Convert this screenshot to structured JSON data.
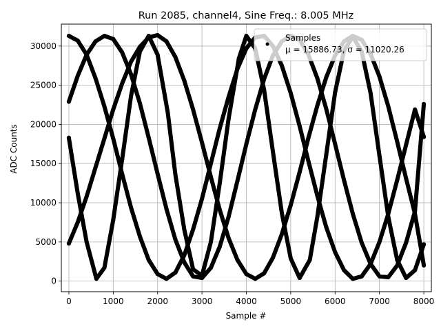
{
  "chart_data": {
    "type": "scatter",
    "title": "Run 2085, channel4, Sine Freq.: 8.005 MHz",
    "xlabel": "Sample #",
    "ylabel": "ADC Counts",
    "xlim": [
      -170,
      8170
    ],
    "ylim": [
      -1350,
      32800
    ],
    "xticks": [
      0,
      1000,
      2000,
      3000,
      4000,
      5000,
      6000,
      7000,
      8000
    ],
    "yticks": [
      0,
      5000,
      10000,
      15000,
      20000,
      25000,
      30000
    ],
    "grid": true,
    "legend": {
      "placement": "top-right",
      "label": "Samples",
      "stats": "μ = 15886.73, σ = 11020.26"
    },
    "marker_color": "#000000",
    "series": [
      {
        "x": [
          0,
          200,
          400,
          620,
          800,
          1000,
          1200,
          1400,
          1600,
          1800,
          2000,
          2230,
          2400,
          2600,
          2800,
          3000,
          3200,
          3400,
          3600,
          3830,
          4000,
          4200,
          4400,
          4600,
          4800,
          5000,
          5200,
          5430,
          5600,
          5800,
          6000,
          6200,
          6400,
          6600,
          6800,
          7000,
          7200,
          7400,
          7600,
          7800,
          8000
        ],
        "y": [
          18300,
          11200,
          5000,
          300,
          1700,
          7800,
          15500,
          23600,
          29300,
          31300,
          28900,
          21500,
          13600,
          6600,
          1500,
          700,
          5000,
          12500,
          20700,
          28400,
          31300,
          29700,
          24400,
          16500,
          8700,
          2900,
          400,
          2700,
          8200,
          16100,
          24100,
          29400,
          31200,
          29300,
          24000,
          16000,
          8200,
          2700,
          400,
          1400,
          4700
        ]
      },
      {
        "x": [
          0,
          200,
          400,
          600,
          800,
          1000,
          1200,
          1400,
          1600,
          1800,
          2000,
          2200,
          2400,
          2600,
          2800,
          3000,
          3200,
          3400,
          3600,
          3800,
          4000,
          4200,
          4400,
          4600,
          4800,
          5000,
          5200,
          5400,
          5600,
          5800,
          6000,
          6200,
          6400,
          6600,
          6800,
          7000,
          7200,
          7400,
          7600,
          7800,
          8000
        ],
        "y": [
          31300,
          30700,
          28900,
          25900,
          22300,
          18200,
          13700,
          9400,
          5700,
          2700,
          900,
          300,
          1100,
          3300,
          6600,
          10500,
          15000,
          19500,
          23500,
          27100,
          29700,
          31100,
          31300,
          30000,
          27500,
          24000,
          19800,
          15300,
          10900,
          6900,
          3700,
          1400,
          300,
          600,
          2200,
          5000,
          8600,
          12900,
          17400,
          21900,
          18400
        ]
      },
      {
        "x": [
          0,
          200,
          400,
          600,
          800,
          1000,
          1200,
          1400,
          1600,
          1800,
          2000,
          2200,
          2400,
          2600,
          2800,
          3000,
          3200,
          3400,
          3600,
          3800,
          4000,
          4200,
          4400,
          4600,
          4800,
          5000,
          5200,
          5400,
          5600,
          5800,
          6000,
          6200,
          6400,
          6600,
          6800,
          7000,
          7200,
          7400,
          7600,
          7800,
          8000
        ],
        "y": [
          22900,
          26200,
          28900,
          30600,
          31300,
          30900,
          29200,
          26400,
          22700,
          18300,
          13700,
          9200,
          5300,
          2400,
          600,
          400,
          1700,
          4400,
          8200,
          12800,
          17500,
          21900,
          25800,
          28800,
          30600,
          31300,
          30800,
          28900,
          25900,
          22000,
          17500,
          12900,
          8600,
          4900,
          2200,
          600,
          500,
          2000,
          4900,
          8900,
          22600
        ]
      },
      {
        "x": [
          0,
          200,
          400,
          600,
          800,
          1000,
          1200,
          1400,
          1600,
          1800,
          2000,
          2200,
          2400,
          2600,
          2800,
          3000,
          3200,
          3400,
          3600,
          3800,
          4000,
          4200,
          4400,
          4600,
          4800,
          5000,
          5200,
          5400,
          5600,
          5800,
          6000,
          6200,
          6400,
          6600,
          6800,
          7000,
          7200,
          7400,
          7600,
          7800,
          8000
        ],
        "y": [
          4800,
          7500,
          10800,
          14500,
          18200,
          21900,
          25200,
          28000,
          29900,
          31100,
          31400,
          30600,
          28600,
          25600,
          21900,
          17700,
          13300,
          9100,
          5500,
          2700,
          900,
          300,
          1000,
          3000,
          6000,
          9700,
          13900,
          18300,
          22400,
          26000,
          28800,
          30600,
          31300,
          30800,
          29000,
          26100,
          22300,
          17800,
          13100,
          8600,
          2000
        ]
      }
    ]
  }
}
